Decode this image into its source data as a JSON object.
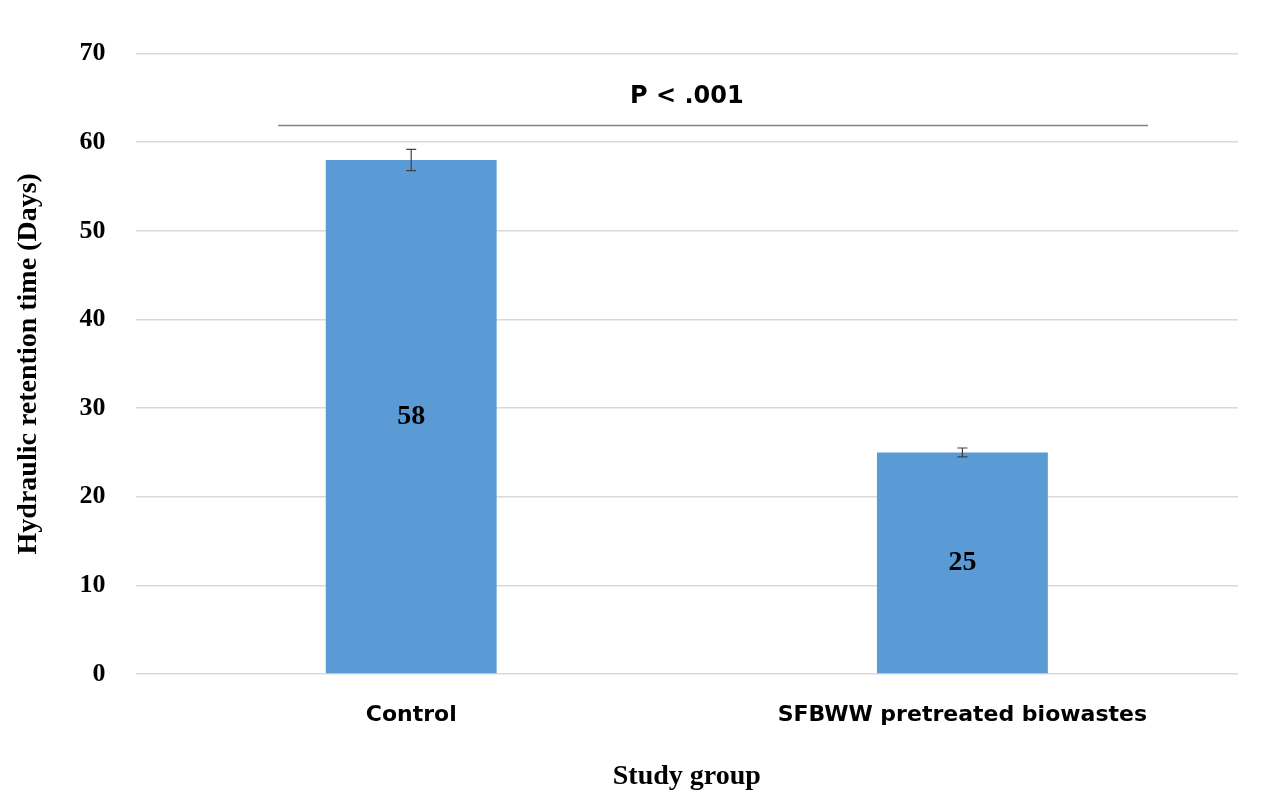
{
  "chart_data": {
    "type": "bar",
    "xlabel": "Study group",
    "ylabel": "Hydraulic retention time (Days)",
    "categories": [
      "Control",
      "SFBWW pretreated biowastes"
    ],
    "values": [
      58,
      25
    ],
    "color": "#5b9bd5",
    "errors": [
      1.2,
      0.5
    ],
    "data_labels": true,
    "ylim": [
      0,
      70
    ],
    "yticks": [
      0,
      10,
      20,
      30,
      40,
      50,
      60,
      70
    ],
    "grid": "y",
    "annotations": [
      "P < .001"
    ]
  }
}
